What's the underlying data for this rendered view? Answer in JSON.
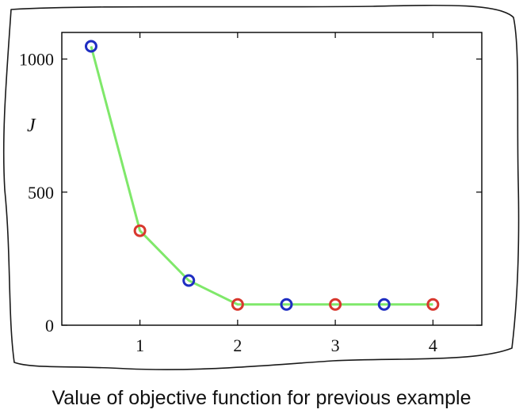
{
  "caption": "Value of objective function  for previous example",
  "chart_data": {
    "type": "line",
    "title": "",
    "xlabel": "",
    "ylabel": "J",
    "xlim": [
      0.2,
      4.5
    ],
    "ylim": [
      0,
      1100
    ],
    "xticks": [
      1,
      2,
      3,
      4
    ],
    "xtick_labels": [
      "1",
      "2",
      "3",
      "4"
    ],
    "yticks": [
      0,
      500,
      1000
    ],
    "ytick_labels": [
      "0",
      "500",
      "1000"
    ],
    "grid": false,
    "line_color": "#7fe86a",
    "points": [
      {
        "x": 0.5,
        "y": 1048,
        "color": "#1f2ec2"
      },
      {
        "x": 1.0,
        "y": 355,
        "color": "#d8382e"
      },
      {
        "x": 1.5,
        "y": 168,
        "color": "#1f2ec2"
      },
      {
        "x": 2.0,
        "y": 78,
        "color": "#d8382e"
      },
      {
        "x": 2.5,
        "y": 78,
        "color": "#1f2ec2"
      },
      {
        "x": 3.0,
        "y": 78,
        "color": "#d8382e"
      },
      {
        "x": 3.5,
        "y": 78,
        "color": "#1f2ec2"
      },
      {
        "x": 4.0,
        "y": 78,
        "color": "#d8382e"
      }
    ]
  }
}
